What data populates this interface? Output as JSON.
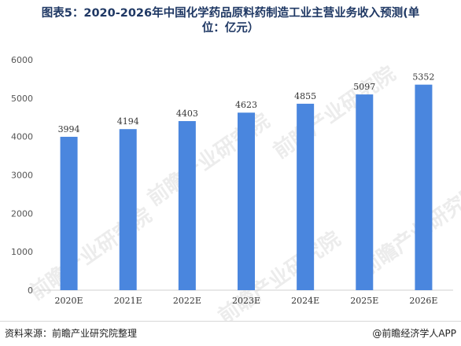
{
  "title": {
    "line1": "图表5：2020-2026年中国化学药品原料药制造工业主营业务收入预测(单",
    "line2": "位：亿元）"
  },
  "watermark": "前瞻产业研究院",
  "footer": {
    "source": "资料来源：前瞻产业研究院整理",
    "brand": "@前瞻经济学人APP"
  },
  "colors": {
    "bar": "#4a86de",
    "title": "#1f3864",
    "watermark": "#c8c8c8"
  },
  "chart_data": {
    "type": "bar",
    "title": "图表5：2020-2026年中国化学药品原料药制造工业主营业务收入预测(单位：亿元）",
    "categories": [
      "2020E",
      "2021E",
      "2022E",
      "2023E",
      "2024E",
      "2025E",
      "2026E"
    ],
    "values": [
      3994,
      4194,
      4403,
      4623,
      4855,
      5097,
      5352
    ],
    "ylim": [
      0,
      6000
    ],
    "yticks": [
      0,
      1000,
      2000,
      3000,
      4000,
      5000,
      6000
    ],
    "xlabel": "",
    "ylabel": "",
    "grid": false,
    "data_labels": true
  }
}
